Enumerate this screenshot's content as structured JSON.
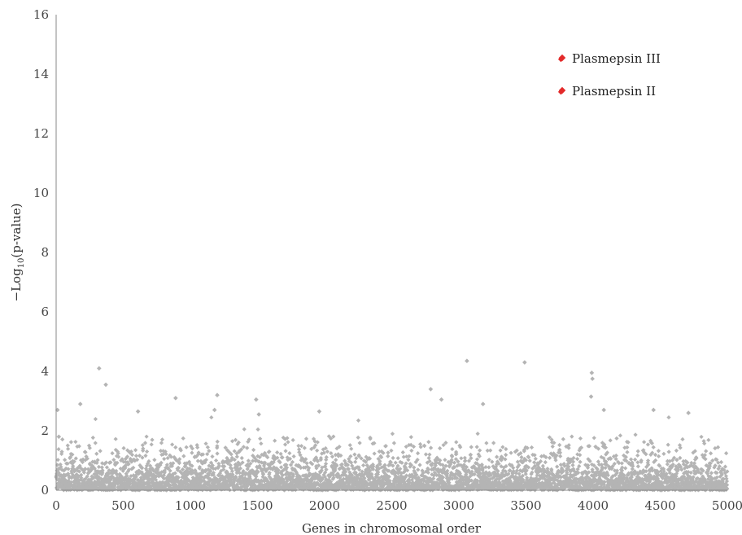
{
  "chart_data": {
    "type": "scatter",
    "title": "",
    "xlabel": "Genes in chromosomal order",
    "ylabel_main": "−Log",
    "ylabel_sub": "10",
    "ylabel_rest": "(p-value)",
    "xlim": [
      0,
      5000
    ],
    "ylim": [
      0,
      16
    ],
    "x_ticks": [
      "0",
      "500",
      "1000",
      "1500",
      "2000",
      "2500",
      "3000",
      "3500",
      "4000",
      "4500",
      "5000"
    ],
    "y_ticks": [
      "0",
      "2",
      "4",
      "6",
      "8",
      "10",
      "12",
      "14",
      "16"
    ],
    "grid": false,
    "legend_position": "top-right",
    "background_series": {
      "color": "#b4b4b4",
      "count": 5000,
      "notable_points": [
        {
          "x": 10,
          "y": 2.7
        },
        {
          "x": 20,
          "y": 1.8
        },
        {
          "x": 180,
          "y": 2.9
        },
        {
          "x": 320,
          "y": 4.1
        },
        {
          "x": 370,
          "y": 3.55
        },
        {
          "x": 610,
          "y": 2.65
        },
        {
          "x": 890,
          "y": 3.1
        },
        {
          "x": 1200,
          "y": 3.2
        },
        {
          "x": 1180,
          "y": 2.7
        },
        {
          "x": 1490,
          "y": 3.05
        },
        {
          "x": 1510,
          "y": 2.55
        },
        {
          "x": 1960,
          "y": 2.65
        },
        {
          "x": 2790,
          "y": 3.4
        },
        {
          "x": 2870,
          "y": 3.05
        },
        {
          "x": 3060,
          "y": 4.35
        },
        {
          "x": 3180,
          "y": 2.9
        },
        {
          "x": 3490,
          "y": 4.3
        },
        {
          "x": 3990,
          "y": 3.95
        },
        {
          "x": 3995,
          "y": 3.75
        },
        {
          "x": 3985,
          "y": 3.15
        },
        {
          "x": 4080,
          "y": 2.7
        },
        {
          "x": 4450,
          "y": 2.7
        },
        {
          "x": 4710,
          "y": 2.6
        }
      ]
    },
    "series": [
      {
        "name": "Plasmepsin III",
        "color": "#e32a2a",
        "x": 3760,
        "y": 14.5
      },
      {
        "name": "Plasmepsin II",
        "color": "#e32a2a",
        "x": 3760,
        "y": 13.4
      }
    ]
  }
}
